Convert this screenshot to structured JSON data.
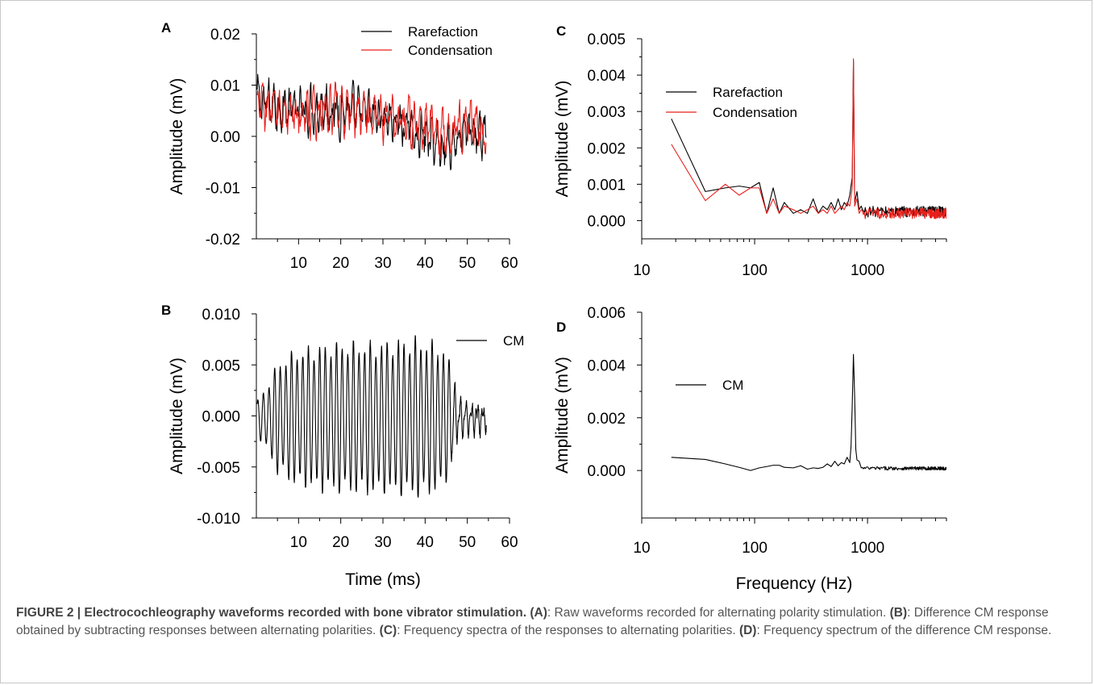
{
  "caption": {
    "figure_label": "FIGURE 2 | Electrocochleography waveforms recorded with bone vibrator stimulation.",
    "parts": [
      {
        "label": "(A)",
        "text": ": Raw waveforms recorded for alternating polarity stimulation. "
      },
      {
        "label": "(B)",
        "text": ": Difference CM response obtained by subtracting responses between alternating polarities. "
      },
      {
        "label": "(C)",
        "text": ": Frequency spectra of the responses to alternating polarities. "
      },
      {
        "label": "(D)",
        "text": ": Frequency spectrum of the difference CM response."
      }
    ]
  },
  "colors": {
    "rarefaction": "#000000",
    "condensation": "#e8201c",
    "cm": "#000000"
  },
  "chart_data": [
    {
      "panel": "A",
      "type": "line",
      "xlabel": "",
      "ylabel": "Amplitude (mV)",
      "xlim": [
        0,
        60
      ],
      "ylim": [
        -0.02,
        0.02
      ],
      "xticks": [
        10,
        20,
        30,
        40,
        50,
        60
      ],
      "yticks": [
        "-0.02",
        "-0.01",
        "0.00",
        "0.01",
        "0.02"
      ],
      "legend": "top-center",
      "series": [
        {
          "name": "Rarefaction",
          "color": "#000000",
          "x_range": [
            0.2,
            54.5
          ],
          "envelope_x": [
            0,
            10,
            15,
            20,
            30,
            40,
            45,
            50,
            54.5
          ],
          "envelope_y": [
            0.007,
            0.005,
            0.006,
            0.005,
            0.004,
            0.0,
            -0.002,
            0.001,
            0.0
          ],
          "noise_amplitude": 0.006,
          "noise_frequency": 0.8
        },
        {
          "name": "Condensation",
          "color": "#e8201c",
          "x_range": [
            0.2,
            54.5
          ],
          "envelope_x": [
            0,
            10,
            15,
            20,
            30,
            40,
            45,
            50,
            54.5
          ],
          "envelope_y": [
            0.006,
            0.004,
            0.005,
            0.005,
            0.004,
            0.002,
            0.0,
            0.003,
            0.001
          ],
          "noise_amplitude": 0.006,
          "noise_frequency": 0.75
        }
      ]
    },
    {
      "panel": "B",
      "type": "line",
      "xlabel": "Time (ms)",
      "ylabel": "Amplitude (mV)",
      "xlim": [
        0,
        60
      ],
      "ylim": [
        -0.01,
        0.01
      ],
      "xticks": [
        10,
        20,
        30,
        40,
        50,
        60
      ],
      "yticks": [
        "-0.010",
        "-0.005",
        "0.000",
        "0.005",
        "0.010"
      ],
      "legend": "top-right",
      "series": [
        {
          "name": "CM",
          "color": "#000000",
          "x_range": [
            0.2,
            54.5
          ],
          "frequency_khz": 0.75,
          "envelope_x": [
            0,
            2,
            5,
            10,
            20,
            30,
            38,
            44,
            46,
            48,
            54.5
          ],
          "envelope_y": [
            0.0015,
            0.0025,
            0.005,
            0.0062,
            0.0068,
            0.0068,
            0.0072,
            0.0065,
            0.005,
            0.0015,
            0.0008
          ]
        }
      ]
    },
    {
      "panel": "C",
      "type": "line",
      "xlabel": "",
      "ylabel": "Amplitude (mV)",
      "xscale": "log",
      "xlim": [
        10,
        5000
      ],
      "ylim": [
        -0.0005,
        0.005
      ],
      "xticks": [
        10,
        100,
        1000
      ],
      "yticks": [
        "0.000",
        "0.001",
        "0.002",
        "0.003",
        "0.004",
        "0.005"
      ],
      "legend": "upper-left",
      "series": [
        {
          "name": "Rarefaction",
          "color": "#000000",
          "x": [
            18.3,
            36.6,
            55,
            73,
            92,
            110,
            128,
            146,
            165,
            183,
            220,
            256,
            293,
            330,
            366,
            403,
            440,
            476,
            513,
            549,
            586,
            622,
            659,
            696,
            732,
            750,
            769,
            806,
            842,
            879
          ],
          "y": [
            0.0028,
            0.0008,
            0.0009,
            0.00095,
            0.0009,
            0.00105,
            0.0002,
            0.0009,
            0.0002,
            0.0005,
            0.0002,
            0.0003,
            0.0002,
            0.0006,
            0.0002,
            0.0004,
            0.0003,
            0.0005,
            0.0003,
            0.0006,
            0.0003,
            0.0005,
            0.0004,
            0.0007,
            0.0012,
            0.0044,
            0.0005,
            0.0008,
            0.0003,
            0.0004
          ],
          "tail_x_range": [
            900,
            5000
          ],
          "tail_level": 0.00025,
          "tail_noise": 0.00015
        },
        {
          "name": "Condensation",
          "color": "#e8201c",
          "x": [
            18.3,
            36.6,
            55,
            73,
            92,
            110,
            128,
            146,
            165,
            183,
            220,
            256,
            293,
            330,
            366,
            403,
            440,
            476,
            513,
            549,
            586,
            622,
            659,
            696,
            732,
            750,
            769,
            806,
            842,
            879
          ],
          "y": [
            0.0021,
            0.00055,
            0.001,
            0.0007,
            0.0009,
            0.0009,
            0.0002,
            0.0006,
            0.0002,
            0.0004,
            0.0003,
            0.0002,
            0.0003,
            0.0004,
            0.0002,
            0.0003,
            0.0002,
            0.0004,
            0.0002,
            0.0003,
            0.0004,
            0.0003,
            0.0005,
            0.0004,
            0.0009,
            0.00445,
            0.0004,
            0.0006,
            0.0002,
            0.0003
          ],
          "tail_x_range": [
            900,
            5000
          ],
          "tail_level": 0.0002,
          "tail_noise": 0.00015
        }
      ]
    },
    {
      "panel": "D",
      "type": "line",
      "xlabel": "Frequency (Hz)",
      "ylabel": "Amplitude (mV)",
      "xscale": "log",
      "xlim": [
        10,
        5000
      ],
      "ylim": [
        -0.0018,
        0.006
      ],
      "xticks": [
        10,
        100,
        1000
      ],
      "yticks": [
        "0.000",
        "0.002",
        "0.004",
        "0.006"
      ],
      "legend": "upper-left",
      "series": [
        {
          "name": "CM",
          "color": "#000000",
          "x": [
            18.3,
            36.6,
            55,
            73,
            92,
            110,
            128,
            146,
            165,
            183,
            220,
            256,
            293,
            330,
            366,
            403,
            440,
            476,
            513,
            549,
            586,
            622,
            659,
            696,
            714,
            732,
            750,
            769,
            787,
            806,
            842,
            879
          ],
          "y": [
            0.0005,
            0.00042,
            0.00025,
            0.00012,
            0.0,
            0.0001,
            0.00015,
            0.0002,
            0.0002,
            0.00012,
            0.0001,
            0.00018,
            5e-05,
            0.0001,
            8e-05,
            0.00012,
            0.00025,
            0.00015,
            0.00035,
            0.00018,
            0.0003,
            0.00025,
            0.0005,
            0.0003,
            0.0009,
            0.0025,
            0.0044,
            0.0028,
            0.0008,
            0.0004,
            0.00035,
            0.0001
          ],
          "tail_x_range": [
            900,
            5000
          ],
          "tail_level": 8e-05,
          "tail_noise": 7e-05
        }
      ]
    }
  ]
}
